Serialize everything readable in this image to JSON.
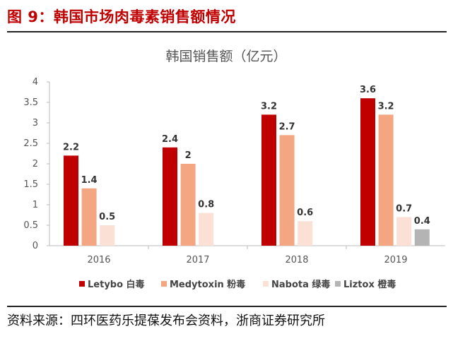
{
  "figure_title": "图 9：韩国市场肉毒素销售额情况",
  "source": "资料来源：四环医药乐提葆发布会资料，浙商证券研究所",
  "chart_data": {
    "type": "bar",
    "title": "韩国销售额（亿元）",
    "categories": [
      "2016",
      "2017",
      "2018",
      "2019"
    ],
    "series": [
      {
        "name": "Letybo 白毒",
        "color": "#c00000",
        "values": [
          2.2,
          2.4,
          3.2,
          3.6
        ]
      },
      {
        "name": "Medytoxin 粉毒",
        "color": "#f4a582",
        "values": [
          1.4,
          2,
          2.7,
          3.2
        ]
      },
      {
        "name": "Nabota 绿毒",
        "color": "#fbe0d6",
        "values": [
          0.5,
          0.8,
          0.6,
          0.7
        ]
      },
      {
        "name": "Liztox 橙毒",
        "color": "#b4b4b4",
        "values": [
          null,
          null,
          null,
          0.4
        ]
      }
    ],
    "ylim": [
      0,
      4
    ],
    "yticks": [
      "0",
      "0.5",
      "1",
      "1.5",
      "2",
      "2.5",
      "3",
      "3.5",
      "4"
    ],
    "legend": "bottom",
    "grid": false
  }
}
